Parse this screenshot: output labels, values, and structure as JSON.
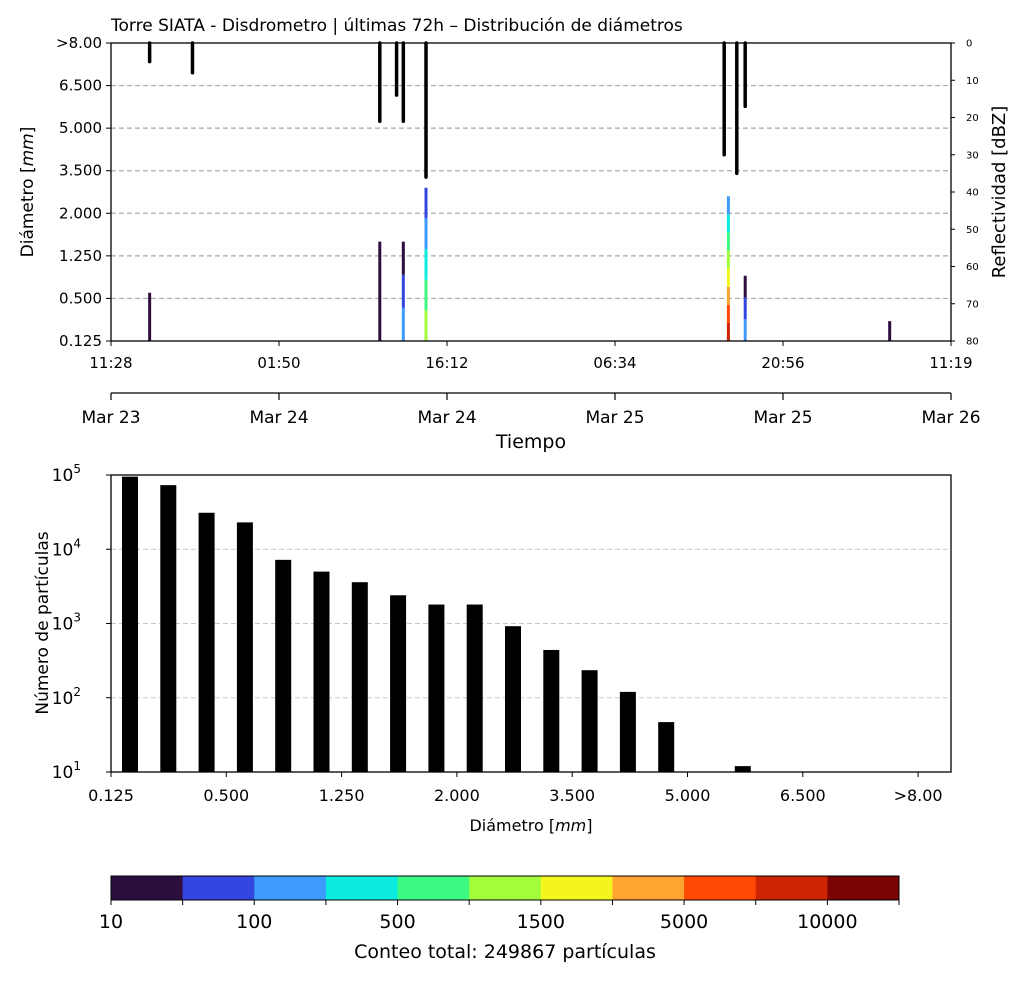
{
  "top_panel": {
    "title": "Torre SIATA - Disdrometro | últimas 72h – Distribución de diámetros",
    "ylabel_main": "Diámetro [",
    "ylabel_unit": "mm",
    "ylabel_close": "]",
    "y2label": "Reflectividad [dBZ]",
    "xlabel": "Tiempo",
    "y_ticks": [
      "0.125",
      "0.500",
      "1.250",
      "2.000",
      "3.500",
      "5.000",
      "6.500",
      ">8.00"
    ],
    "y2_ticks": [
      "0",
      "10",
      "20",
      "30",
      "40",
      "50",
      "60",
      "70",
      "80"
    ],
    "time_ticks": [
      "11:28",
      "01:50",
      "16:12",
      "06:34",
      "20:56",
      "11:19"
    ],
    "date_ticks": [
      "Mar 23",
      "Mar 24",
      "Mar 24",
      "Mar 25",
      "Mar 25",
      "Mar 26"
    ]
  },
  "bottom_panel": {
    "ylabel": "Número de partículas",
    "xlabel_main": "Diámetro [",
    "xlabel_unit": "mm",
    "xlabel_close": "]",
    "x_ticks": [
      "0.125",
      "0.500",
      "1.250",
      "2.000",
      "3.500",
      "5.000",
      "6.500",
      ">8.00"
    ],
    "y_ticks": [
      {
        "base": "10",
        "exp": "1"
      },
      {
        "base": "10",
        "exp": "2"
      },
      {
        "base": "10",
        "exp": "3"
      },
      {
        "base": "10",
        "exp": "4"
      },
      {
        "base": "10",
        "exp": "5"
      }
    ]
  },
  "colorbar": {
    "colors": [
      "#2e0d3f",
      "#3346e0",
      "#3e9bfe",
      "#0bebe0",
      "#3dfa82",
      "#a3fd3b",
      "#f5f51e",
      "#fea431",
      "#fe4a03",
      "#cd2403",
      "#7a0403"
    ],
    "tick_labels": [
      "10",
      "100",
      "500",
      "1500",
      "5000",
      "10000"
    ],
    "caption": "Conteo total: 249867 partículas"
  },
  "chart_data": [
    {
      "type": "heatmap",
      "title": "Torre SIATA - Disdrometro | últimas 72h – Distribución de diámetros",
      "xlabel": "Tiempo",
      "ylabel": "Diámetro [mm]",
      "y2label": "Reflectividad [dBZ]",
      "x_range": [
        "Mar 23 11:28",
        "Mar 26 11:19"
      ],
      "y_categories": [
        "0.125",
        "0.500",
        "1.250",
        "2.000",
        "3.500",
        "5.000",
        "6.500",
        ">8.00"
      ],
      "y2_range": [
        80,
        0
      ],
      "grid": "horizontal dashed",
      "rain_events": [
        {
          "time_frac": 0.046,
          "diam_max": 0.6,
          "count_level": "10"
        },
        {
          "time_frac": 0.32,
          "diam_max": 1.5,
          "count_level": "10"
        },
        {
          "time_frac": 0.348,
          "diam_max": 1.5,
          "count_level": "10-100"
        },
        {
          "time_frac": 0.375,
          "diam_max": 2.9,
          "count_level": "100-1500"
        },
        {
          "time_frac": 0.735,
          "diam_max": 2.6,
          "count_level": "500-10000"
        },
        {
          "time_frac": 0.755,
          "diam_max": 0.9,
          "count_level": "10-100"
        },
        {
          "time_frac": 0.927,
          "diam_max": 0.3,
          "count_level": "10"
        }
      ],
      "reflectivity_segments": [
        {
          "time_frac": 0.046,
          "dbz_max": 5
        },
        {
          "time_frac": 0.097,
          "dbz_max": 8
        },
        {
          "time_frac": 0.32,
          "dbz_max": 21
        },
        {
          "time_frac": 0.34,
          "dbz_max": 14
        },
        {
          "time_frac": 0.348,
          "dbz_max": 21
        },
        {
          "time_frac": 0.375,
          "dbz_max": 36
        },
        {
          "time_frac": 0.73,
          "dbz_max": 30
        },
        {
          "time_frac": 0.745,
          "dbz_max": 35
        },
        {
          "time_frac": 0.755,
          "dbz_max": 17
        }
      ]
    },
    {
      "type": "bar",
      "xlabel": "Diámetro [mm]",
      "ylabel": "Número de partículas",
      "yscale": "log",
      "ylim": [
        10,
        100000
      ],
      "categories": [
        "0.125",
        "0.25",
        "0.375",
        "0.500",
        "0.75",
        "1.000",
        "1.250",
        "1.500",
        "1.750",
        "2.000",
        "2.500",
        "3.000",
        "3.500",
        "4.000",
        "4.500",
        "5.000",
        "5.500",
        "6.000",
        "6.500",
        "7.000",
        "7.500",
        ">8.00"
      ],
      "values": [
        95000,
        73000,
        31000,
        23000,
        7200,
        5000,
        3600,
        2400,
        1800,
        1800,
        920,
        440,
        235,
        120,
        47,
        8,
        12,
        0,
        0,
        0,
        0,
        0
      ],
      "grid": "horizontal dashed"
    }
  ]
}
